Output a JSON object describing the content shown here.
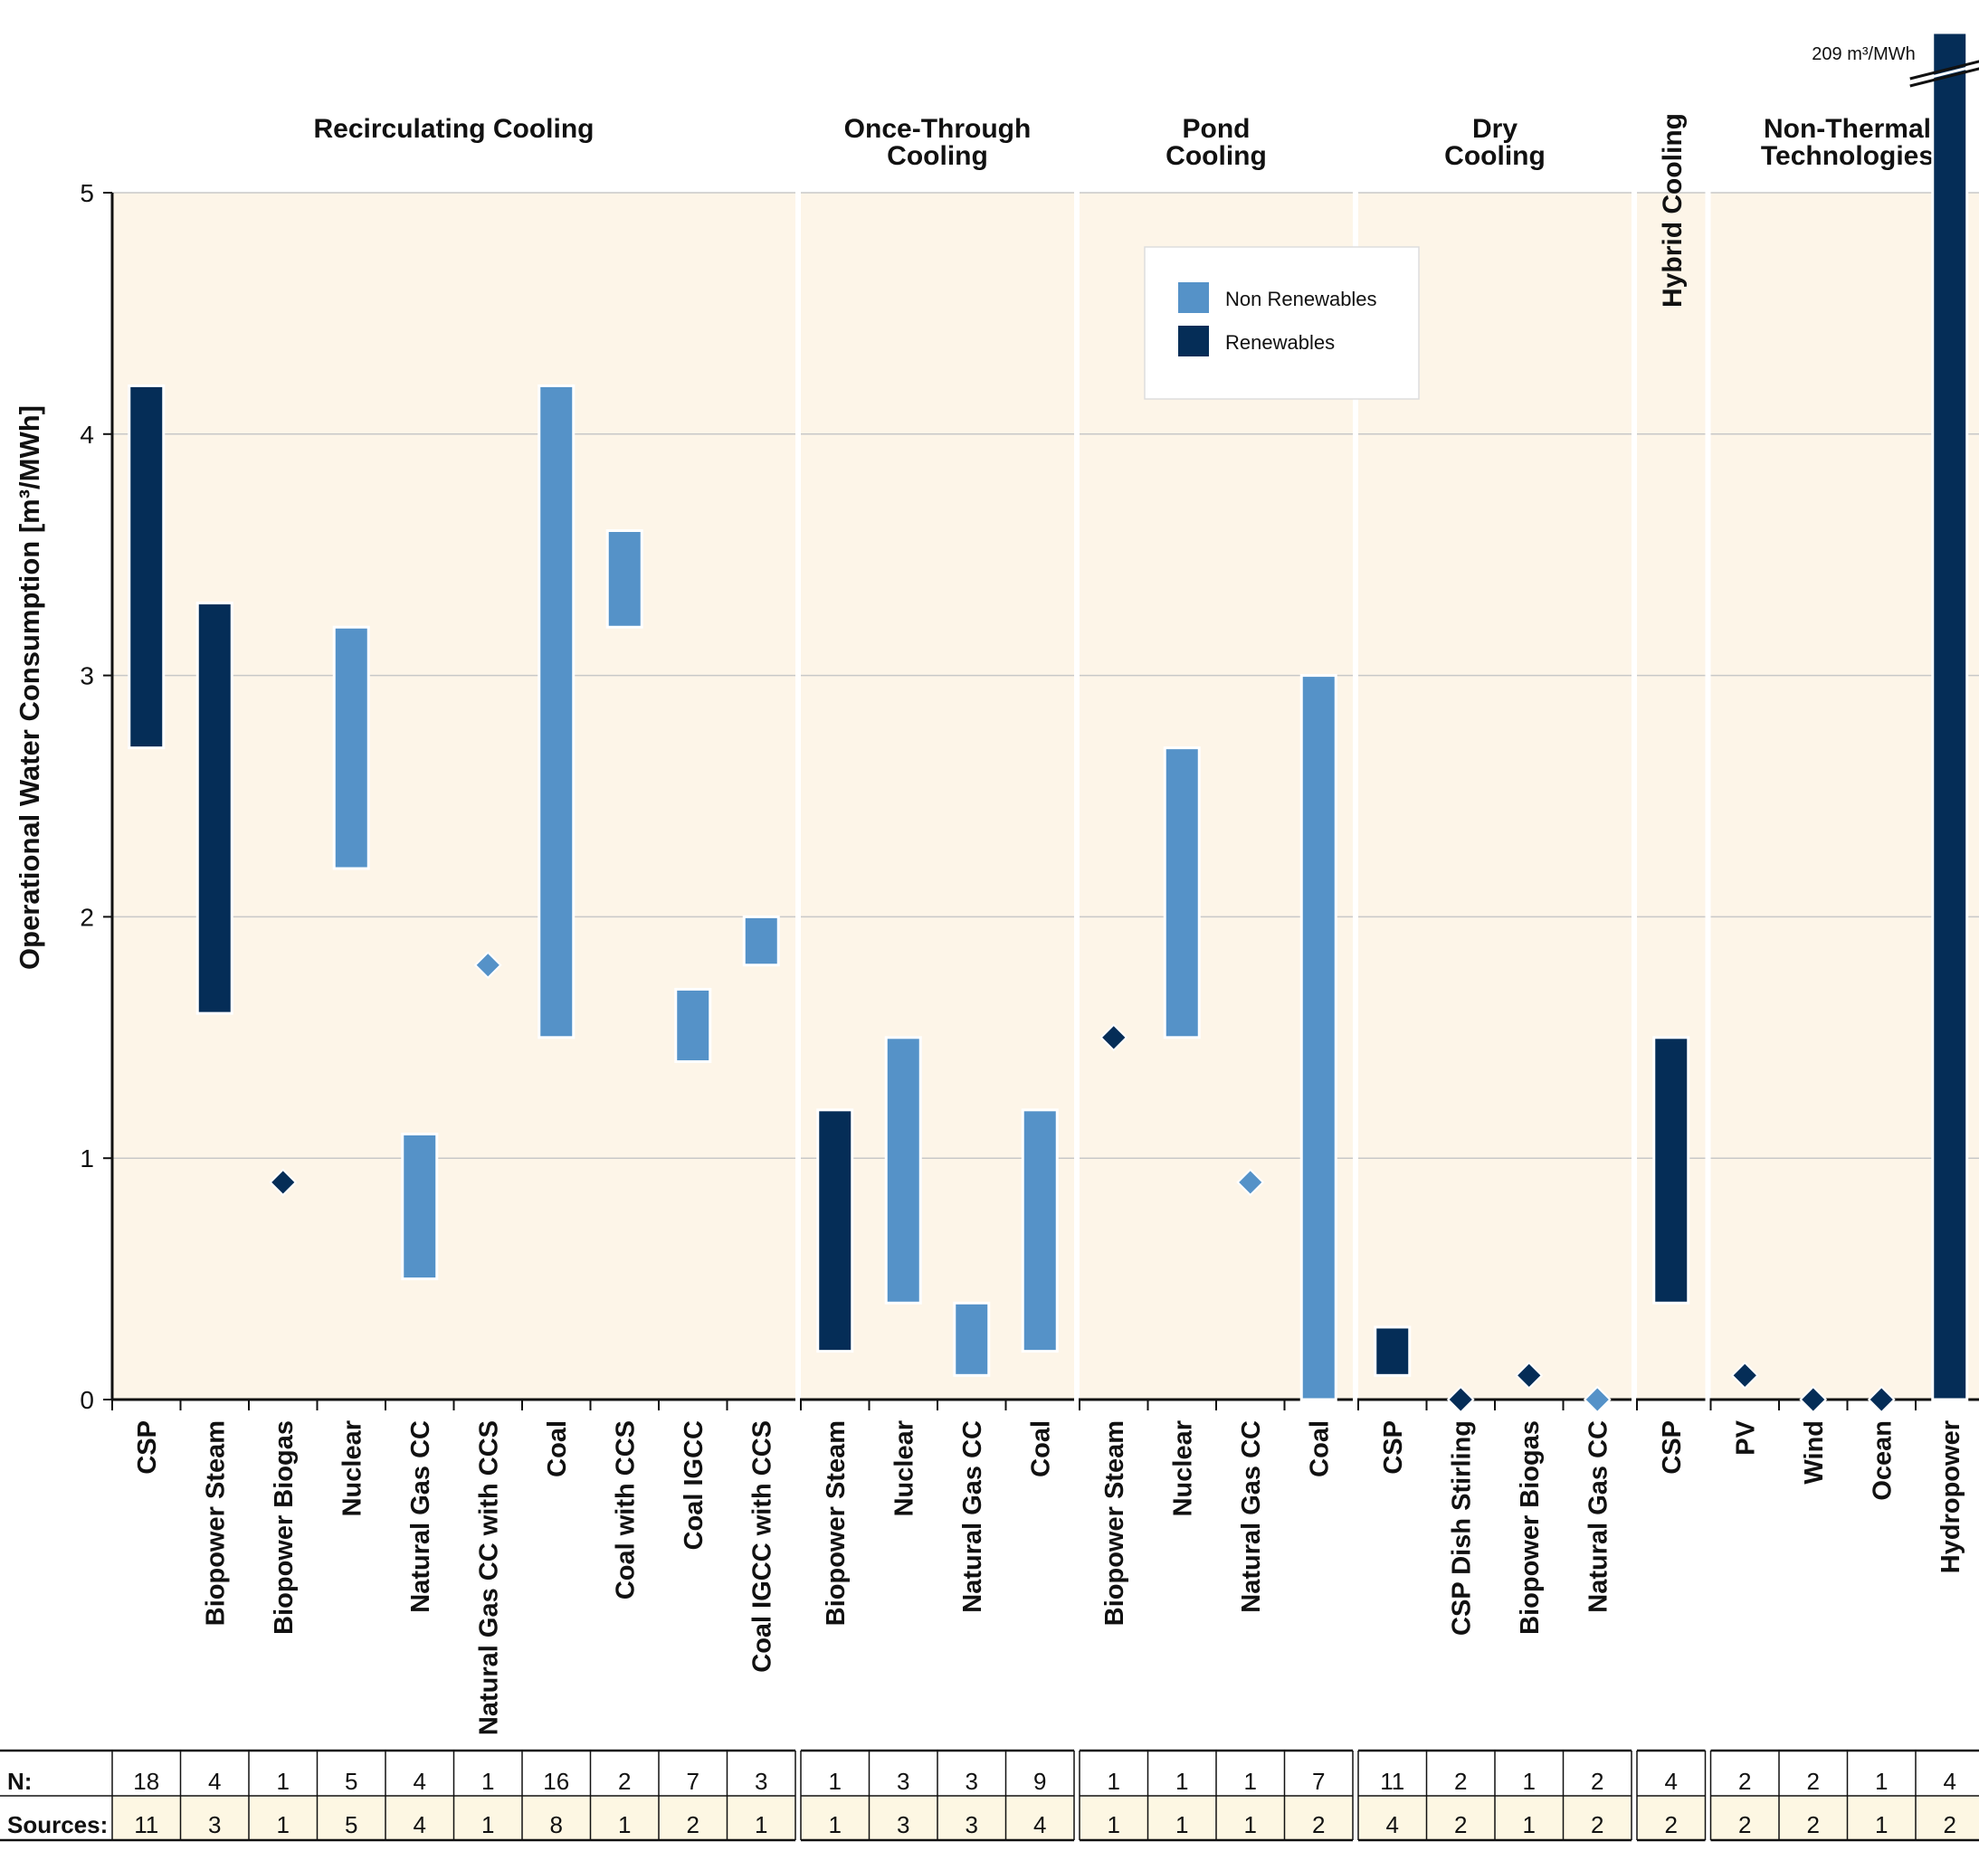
{
  "chart_data": {
    "type": "range-bar",
    "ylabel": "Operational Water Consumption [m³/MWh]",
    "ylim": [
      0,
      5
    ],
    "yticks": [
      "0",
      "1",
      "2",
      "3",
      "4",
      "5"
    ],
    "grid": true,
    "legend_position": "top-center",
    "colors": {
      "non_renewable": "#5592c8",
      "renewable": "#052d57",
      "panel_bg": "#fdf5e8",
      "table_bg": "#fdf7e3",
      "grid": "#c8c8c8"
    },
    "legend": [
      {
        "key": "non_renewable",
        "label": "Non Renewables"
      },
      {
        "key": "renewable",
        "label": "Renewables"
      }
    ],
    "break_note": "209 m³/MWh",
    "table_labels": {
      "n": "N:",
      "sources": "Sources:"
    },
    "groups": [
      {
        "title_lines": [
          "Recirculating Cooling"
        ],
        "items": [
          {
            "label": "CSP",
            "kind": "renewable",
            "min": 2.7,
            "max": 4.2,
            "n": "18",
            "sources": "11"
          },
          {
            "label": "Biopower Steam",
            "kind": "renewable",
            "min": 1.6,
            "max": 3.3,
            "n": "4",
            "sources": "3"
          },
          {
            "label": "Biopower Biogas",
            "kind": "renewable",
            "min": 0.9,
            "max": 0.9,
            "n": "1",
            "sources": "1"
          },
          {
            "label": "Nuclear",
            "kind": "non_renewable",
            "min": 2.2,
            "max": 3.2,
            "n": "5",
            "sources": "5"
          },
          {
            "label": "Natural Gas CC",
            "kind": "non_renewable",
            "min": 0.5,
            "max": 1.1,
            "n": "4",
            "sources": "4"
          },
          {
            "label": "Natural Gas CC with CCS",
            "kind": "non_renewable",
            "min": 1.8,
            "max": 1.8,
            "n": "1",
            "sources": "1"
          },
          {
            "label": "Coal",
            "kind": "non_renewable",
            "min": 1.5,
            "max": 4.2,
            "n": "16",
            "sources": "8"
          },
          {
            "label": "Coal with CCS",
            "kind": "non_renewable",
            "min": 3.2,
            "max": 3.6,
            "n": "2",
            "sources": "1"
          },
          {
            "label": "Coal IGCC",
            "kind": "non_renewable",
            "min": 1.4,
            "max": 1.7,
            "n": "7",
            "sources": "2"
          },
          {
            "label": "Coal IGCC with CCS",
            "kind": "non_renewable",
            "min": 1.8,
            "max": 2.0,
            "n": "3",
            "sources": "1"
          }
        ]
      },
      {
        "title_lines": [
          "Once-Through",
          "Cooling"
        ],
        "items": [
          {
            "label": "Biopower Steam",
            "kind": "renewable",
            "min": 0.2,
            "max": 1.2,
            "n": "1",
            "sources": "1"
          },
          {
            "label": "Nuclear",
            "kind": "non_renewable",
            "min": 0.4,
            "max": 1.5,
            "n": "3",
            "sources": "3"
          },
          {
            "label": "Natural Gas CC",
            "kind": "non_renewable",
            "min": 0.1,
            "max": 0.4,
            "n": "3",
            "sources": "3"
          },
          {
            "label": "Coal",
            "kind": "non_renewable",
            "min": 0.2,
            "max": 1.2,
            "n": "9",
            "sources": "4"
          }
        ]
      },
      {
        "title_lines": [
          "Pond",
          "Cooling"
        ],
        "items": [
          {
            "label": "Biopower Steam",
            "kind": "renewable",
            "min": 1.5,
            "max": 1.5,
            "n": "1",
            "sources": "1"
          },
          {
            "label": "Nuclear",
            "kind": "non_renewable",
            "min": 1.5,
            "max": 2.7,
            "n": "1",
            "sources": "1"
          },
          {
            "label": "Natural Gas CC",
            "kind": "non_renewable",
            "min": 0.9,
            "max": 0.9,
            "n": "1",
            "sources": "1"
          },
          {
            "label": "Coal",
            "kind": "non_renewable",
            "min": 0.0,
            "max": 3.0,
            "n": "7",
            "sources": "2"
          }
        ]
      },
      {
        "title_lines": [
          "Dry",
          "Cooling"
        ],
        "items": [
          {
            "label": "CSP",
            "kind": "renewable",
            "min": 0.1,
            "max": 0.3,
            "n": "11",
            "sources": "4"
          },
          {
            "label": "CSP Dish Stirling",
            "kind": "renewable",
            "min": 0.0,
            "max": 0.0,
            "n": "2",
            "sources": "2"
          },
          {
            "label": "Biopower Biogas",
            "kind": "renewable",
            "min": 0.1,
            "max": 0.1,
            "n": "1",
            "sources": "1"
          },
          {
            "label": "Natural Gas CC",
            "kind": "non_renewable",
            "min": 0.0,
            "max": 0.0,
            "n": "2",
            "sources": "2"
          }
        ]
      },
      {
        "title_lines": [
          "Hybrid Cooling"
        ],
        "title_vertical": true,
        "items": [
          {
            "label": "CSP",
            "kind": "renewable",
            "min": 0.4,
            "max": 1.5,
            "n": "4",
            "sources": "2"
          }
        ]
      },
      {
        "title_lines": [
          "Non-Thermal",
          "Technologies"
        ],
        "items": [
          {
            "label": "PV",
            "kind": "renewable",
            "min": 0.1,
            "max": 0.1,
            "n": "2",
            "sources": "2"
          },
          {
            "label": "Wind",
            "kind": "renewable",
            "min": 0.0,
            "max": 0.0,
            "n": "2",
            "sources": "2"
          },
          {
            "label": "Ocean",
            "kind": "renewable",
            "min": 0.0,
            "max": 0.0,
            "n": "1",
            "sources": "1"
          },
          {
            "label": "Hydropower",
            "kind": "renewable",
            "min": 0.0,
            "max": 209,
            "broken_axis": true,
            "n": "4",
            "sources": "2"
          }
        ]
      }
    ]
  }
}
